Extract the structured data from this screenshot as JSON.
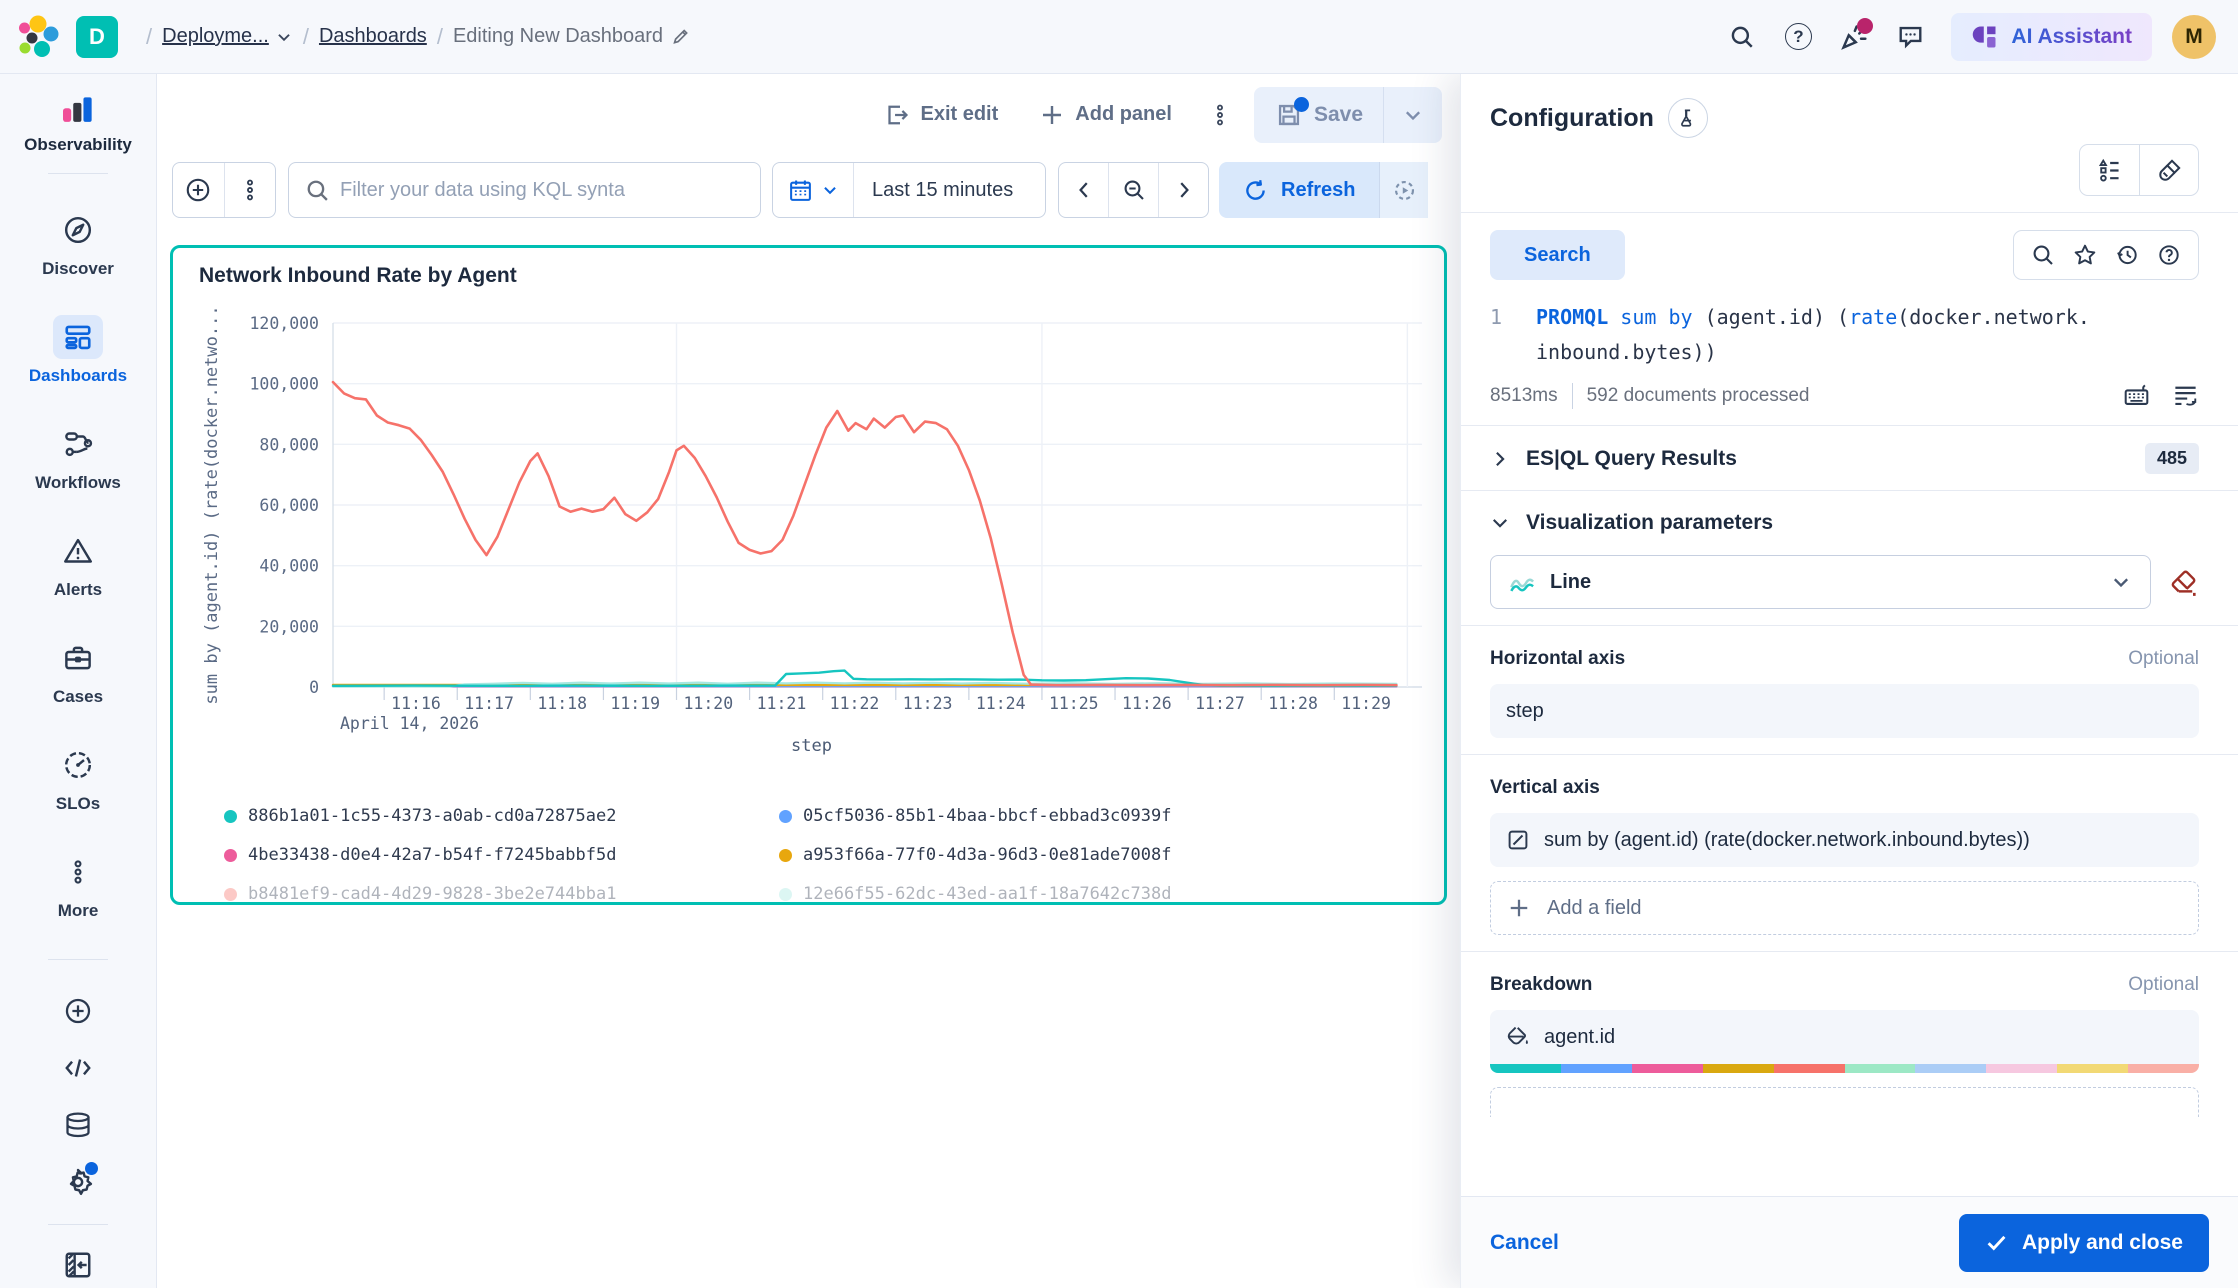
{
  "header": {
    "space_initial": "D",
    "breadcrumb_deployment": "Deployme...",
    "breadcrumb_dashboards": "Dashboards",
    "breadcrumb_current": "Editing New Dashboard",
    "ai_assistant_label": "AI Assistant",
    "user_initial": "M"
  },
  "sidebar": {
    "solution": "Observability",
    "items": [
      {
        "label": "Discover"
      },
      {
        "label": "Dashboards"
      },
      {
        "label": "Workflows"
      },
      {
        "label": "Alerts"
      },
      {
        "label": "Cases"
      },
      {
        "label": "SLOs"
      },
      {
        "label": "More"
      }
    ]
  },
  "toolbar": {
    "exit_edit": "Exit edit",
    "add_panel": "Add panel",
    "save": "Save"
  },
  "filter_bar": {
    "kql_placeholder": "Filter your data using KQL synta",
    "time_range": "Last 15 minutes",
    "refresh_label": "Refresh"
  },
  "panel": {
    "title": "Network Inbound Rate by Agent"
  },
  "chart_data": {
    "type": "line",
    "title": "Network Inbound Rate by Agent",
    "xlabel": "step",
    "ylabel": "sum by (agent.id) (rate(docker.netwo...",
    "date_label": "April 14, 2026",
    "xlim": [
      15.3,
      30.2
    ],
    "ylim": [
      0,
      120000
    ],
    "y_ticks": [
      0,
      20000,
      40000,
      60000,
      80000,
      100000,
      120000
    ],
    "x_tick_minutes": [
      16,
      17,
      18,
      19,
      20,
      21,
      22,
      23,
      24,
      25,
      26,
      27,
      28,
      29
    ],
    "x_tick_labels": [
      "11:16",
      "11:17",
      "11:18",
      "11:19",
      "11:20",
      "11:21",
      "11:22",
      "11:23",
      "11:24",
      "11:25",
      "11:26",
      "11:27",
      "11:28",
      "11:29"
    ],
    "grid_vertical": [
      20,
      25,
      30
    ],
    "legend_position": "bottom",
    "draw_order": [
      2,
      1,
      3,
      5,
      0,
      4
    ],
    "series": [
      {
        "name": "886b1a01-1c55-4373-a0ab-cd0a72875ae2",
        "color": "#16C5C0",
        "width": 2.4,
        "points": [
          [
            15.3,
            400
          ],
          [
            16.4,
            450
          ],
          [
            17.5,
            400
          ],
          [
            18.6,
            450
          ],
          [
            19.7,
            400
          ],
          [
            20.8,
            450
          ],
          [
            21.35,
            500
          ],
          [
            21.5,
            4300
          ],
          [
            21.7,
            4500
          ],
          [
            21.95,
            4700
          ],
          [
            22.15,
            5200
          ],
          [
            22.3,
            5400
          ],
          [
            22.42,
            2700
          ],
          [
            22.6,
            2550
          ],
          [
            22.9,
            2500
          ],
          [
            23.2,
            2550
          ],
          [
            23.5,
            2500
          ],
          [
            23.8,
            2550
          ],
          [
            24.1,
            2500
          ],
          [
            24.4,
            2400
          ],
          [
            24.7,
            2450
          ],
          [
            25.0,
            2200
          ],
          [
            25.3,
            2150
          ],
          [
            25.6,
            2250
          ],
          [
            25.9,
            2600
          ],
          [
            26.15,
            2900
          ],
          [
            26.45,
            2800
          ],
          [
            26.75,
            2300
          ],
          [
            27.0,
            1400
          ],
          [
            27.2,
            700
          ],
          [
            27.45,
            400
          ],
          [
            28.0,
            350
          ],
          [
            28.6,
            400
          ],
          [
            29.2,
            350
          ],
          [
            29.85,
            400
          ]
        ]
      },
      {
        "name": "05cf5036-85b1-4baa-bbcf-ebbad3c0939f",
        "color": "#61A2FF",
        "width": 2.2,
        "const": 300
      },
      {
        "name": "4be33438-d0e4-42a7-b54f-f7245babbf5d",
        "color": "#ED5C9B",
        "width": 2.2,
        "const": 200
      },
      {
        "name": "a953f66a-77f0-4d3a-96d3-0e81ade7008f",
        "color": "#E8A70E",
        "width": 2.4,
        "const": 700
      },
      {
        "name": "b8481ef9-cad4-4d29-9828-3be2e744bba1",
        "color": "#F6726A",
        "width": 2.6,
        "points": [
          [
            15.3,
            100500
          ],
          [
            15.45,
            96800
          ],
          [
            15.6,
            95200
          ],
          [
            15.75,
            94800
          ],
          [
            15.9,
            89500
          ],
          [
            16.05,
            87200
          ],
          [
            16.2,
            86300
          ],
          [
            16.35,
            85200
          ],
          [
            16.5,
            81500
          ],
          [
            16.65,
            76500
          ],
          [
            16.8,
            71000
          ],
          [
            16.95,
            63500
          ],
          [
            17.1,
            55500
          ],
          [
            17.25,
            48500
          ],
          [
            17.4,
            43500
          ],
          [
            17.55,
            49500
          ],
          [
            17.7,
            58500
          ],
          [
            17.85,
            67500
          ],
          [
            18.0,
            74500
          ],
          [
            18.1,
            77000
          ],
          [
            18.25,
            69500
          ],
          [
            18.4,
            59500
          ],
          [
            18.55,
            57800
          ],
          [
            18.7,
            58800
          ],
          [
            18.85,
            57800
          ],
          [
            19.0,
            58600
          ],
          [
            19.15,
            62400
          ],
          [
            19.3,
            57000
          ],
          [
            19.45,
            54800
          ],
          [
            19.6,
            57600
          ],
          [
            19.75,
            62000
          ],
          [
            19.9,
            71000
          ],
          [
            20.0,
            78000
          ],
          [
            20.1,
            79500
          ],
          [
            20.25,
            75500
          ],
          [
            20.4,
            69500
          ],
          [
            20.55,
            62500
          ],
          [
            20.7,
            54500
          ],
          [
            20.85,
            47500
          ],
          [
            21.0,
            45200
          ],
          [
            21.15,
            44000
          ],
          [
            21.3,
            44800
          ],
          [
            21.45,
            48500
          ],
          [
            21.6,
            56500
          ],
          [
            21.75,
            66500
          ],
          [
            21.9,
            76500
          ],
          [
            22.05,
            85500
          ],
          [
            22.2,
            91000
          ],
          [
            22.35,
            84500
          ],
          [
            22.45,
            87000
          ],
          [
            22.6,
            85000
          ],
          [
            22.7,
            88500
          ],
          [
            22.85,
            85500
          ],
          [
            23.0,
            89000
          ],
          [
            23.1,
            89500
          ],
          [
            23.25,
            84000
          ],
          [
            23.4,
            87500
          ],
          [
            23.55,
            87000
          ],
          [
            23.7,
            85000
          ],
          [
            23.85,
            79500
          ],
          [
            24.0,
            71500
          ],
          [
            24.15,
            61500
          ],
          [
            24.3,
            49000
          ],
          [
            24.45,
            34000
          ],
          [
            24.6,
            18000
          ],
          [
            24.75,
            4000
          ],
          [
            24.85,
            800
          ],
          [
            25.2,
            600
          ],
          [
            25.8,
            700
          ],
          [
            26.4,
            600
          ],
          [
            27.0,
            700
          ],
          [
            27.6,
            600
          ],
          [
            28.2,
            700
          ],
          [
            28.8,
            600
          ],
          [
            29.4,
            700
          ],
          [
            29.85,
            600
          ]
        ]
      },
      {
        "name": "12e66f55-62dc-43ed-aa1f-18a7642c738d",
        "color": "#A5E8E1",
        "width": 2.2,
        "points": [
          [
            15.3,
            150
          ],
          [
            16.9,
            200
          ],
          [
            17.1,
            900
          ],
          [
            17.5,
            1100
          ],
          [
            17.9,
            1400
          ],
          [
            18.3,
            1100
          ],
          [
            18.7,
            1450
          ],
          [
            19.1,
            1150
          ],
          [
            19.5,
            1450
          ],
          [
            19.9,
            1150
          ],
          [
            20.3,
            1450
          ],
          [
            20.7,
            1100
          ],
          [
            21.1,
            1450
          ],
          [
            21.5,
            1200
          ],
          [
            21.9,
            1450
          ],
          [
            22.3,
            1200
          ],
          [
            22.7,
            1450
          ],
          [
            23.1,
            1200
          ],
          [
            23.5,
            1400
          ],
          [
            23.9,
            1150
          ],
          [
            24.3,
            1350
          ],
          [
            24.8,
            1100
          ],
          [
            25.4,
            1250
          ],
          [
            26.0,
            1050
          ],
          [
            26.6,
            1250
          ],
          [
            27.2,
            1050
          ],
          [
            27.8,
            1200
          ],
          [
            28.4,
            1000
          ],
          [
            29.0,
            1150
          ],
          [
            29.85,
            1050
          ]
        ]
      }
    ]
  },
  "flyout": {
    "title": "Configuration",
    "search_label": "Search",
    "query": {
      "line_number": "1",
      "kw_lang": "PROMQL",
      "kw_agg": "sum by",
      "txt_group": " (agent.id) (",
      "kw_fn": "rate",
      "txt_args": "(docker.network.",
      "txt_wrap": "inbound.bytes))",
      "stats_time": "8513ms",
      "stats_docs": "592 documents processed"
    },
    "results": {
      "label": "ES|QL Query Results",
      "badge": "485"
    },
    "vis": {
      "section": "Visualization parameters",
      "chart_type": "Line",
      "h_label": "Horizontal axis",
      "h_optional": "Optional",
      "h_value": "step",
      "v_label": "Vertical axis",
      "v_value": "sum by (agent.id) (rate(docker.network.inbound.bytes))",
      "add_field": "Add a field",
      "b_label": "Breakdown",
      "b_optional": "Optional",
      "b_value": "agent.id"
    },
    "breakdown_palette": [
      "#16C5C0",
      "#61A2FF",
      "#ED5C9B",
      "#D9A810",
      "#F6726A",
      "#9CE8C5",
      "#ABCDF6",
      "#F6C8E0",
      "#F2D975",
      "#F9AFA6"
    ],
    "cancel": "Cancel",
    "apply": "Apply and close"
  }
}
